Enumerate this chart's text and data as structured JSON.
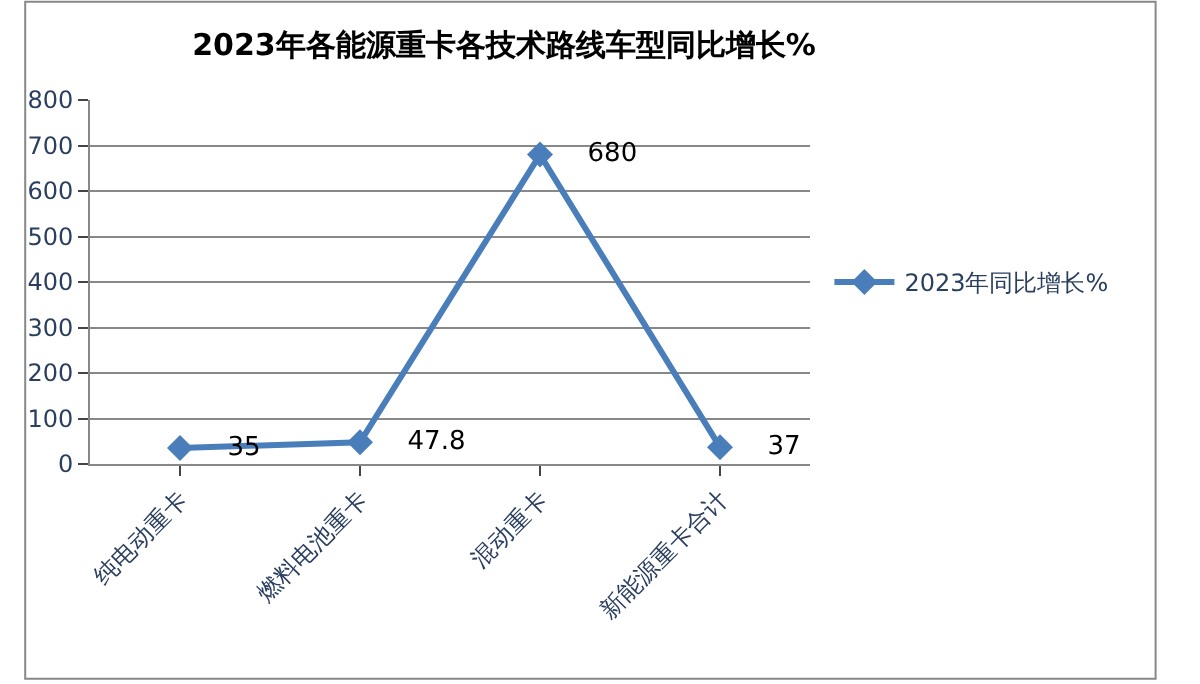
{
  "chart_data": {
    "type": "line",
    "title": "2023年各能源重卡各技术路线车型同比增长%",
    "categories": [
      "纯电动重卡",
      "燃料电池重卡",
      "混动重卡",
      "新能源重卡合计"
    ],
    "series": [
      {
        "name": "2023年同比增长%",
        "color": "#4a7ebb",
        "values": [
          35,
          47.8,
          680,
          37
        ]
      }
    ],
    "ylim": [
      0,
      800
    ],
    "yticks": [
      0,
      100,
      200,
      300,
      400,
      500,
      600,
      700,
      800
    ],
    "grid": "y",
    "legend": "right",
    "marker": "diamond",
    "line_style": "solid",
    "data_labels": true
  }
}
